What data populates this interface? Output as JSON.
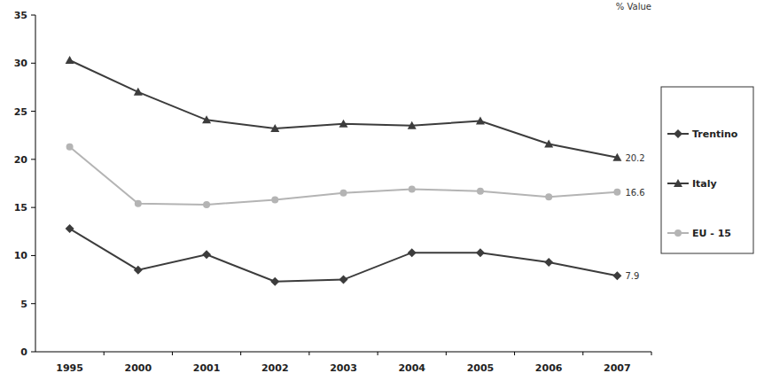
{
  "chart_data": {
    "type": "line",
    "y_label": "% Value",
    "categories": [
      "1995",
      "2000",
      "2001",
      "2002",
      "2003",
      "2004",
      "2005",
      "2006",
      "2007"
    ],
    "series": [
      {
        "name": "Trentino",
        "color": "#3c3c3c",
        "marker": "diamond",
        "values": [
          12.8,
          8.5,
          10.1,
          7.3,
          7.5,
          10.3,
          10.3,
          9.3,
          7.9
        ],
        "data_labels": true,
        "value_labels": [
          null,
          null,
          null,
          null,
          null,
          null,
          null,
          null,
          "7.9"
        ]
      },
      {
        "name": "Italy",
        "color": "#3c3c3c",
        "marker": "triangle",
        "values": [
          30.3,
          27.0,
          24.1,
          23.2,
          23.7,
          23.5,
          24.0,
          21.6,
          20.2
        ],
        "data_labels": true,
        "value_labels": [
          null,
          null,
          null,
          null,
          null,
          null,
          null,
          null,
          "20.2"
        ]
      },
      {
        "name": "EU - 15",
        "color": "#b4b4b4",
        "marker": "circle",
        "values": [
          21.3,
          15.4,
          15.3,
          15.8,
          16.5,
          16.9,
          16.7,
          16.1,
          16.6
        ],
        "data_labels": true,
        "value_labels": [
          null,
          null,
          null,
          null,
          null,
          null,
          null,
          null,
          "16.6"
        ]
      }
    ],
    "ylim": [
      0,
      35
    ],
    "yticks": [
      0,
      5,
      10,
      15,
      20,
      25,
      30,
      35
    ],
    "grid": false,
    "legend": "right"
  }
}
